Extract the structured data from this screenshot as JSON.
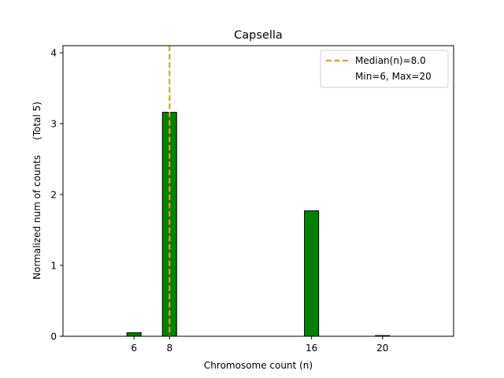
{
  "chart_data": {
    "type": "bar",
    "title": "Capsella",
    "xlabel": "Chromosome count (n)",
    "ylabel": "Normalized num of counts     (Total 5)",
    "xlim": [
      2,
      24
    ],
    "ylim": [
      0,
      4.1
    ],
    "x_ticks": [
      6,
      8,
      16,
      20
    ],
    "y_ticks": [
      0,
      1,
      2,
      3,
      4
    ],
    "bar_width": 0.8,
    "bar_color": "#008000",
    "bar_edge_color": "#000000",
    "bars": [
      {
        "x": 6,
        "value": 0.05
      },
      {
        "x": 8,
        "value": 3.16
      },
      {
        "x": 16,
        "value": 1.77
      },
      {
        "x": 20,
        "value": 0.01
      }
    ],
    "median": {
      "value": 8.0,
      "color": "#DAA520",
      "label": "Median(n)=8.0"
    },
    "legend": {
      "position": "top-right",
      "entries": [
        "Median(n)=8.0",
        "Min=6, Max=20"
      ]
    }
  }
}
